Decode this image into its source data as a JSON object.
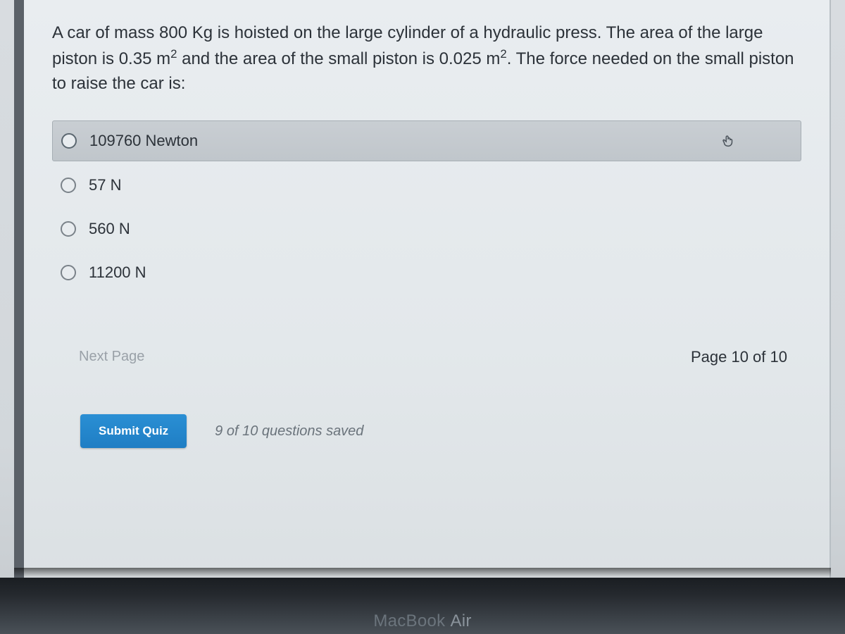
{
  "question": {
    "text_html": "A car of mass 800 Kg is hoisted on the large cylinder of a hydraulic press. The area of the large piston is 0.35 m<sup>2</sup> and the area of the small piston is 0.025 m<sup>2</sup>. The force needed on the small piston to raise the car is:"
  },
  "options": [
    {
      "label": "109760 Newton",
      "highlighted": true,
      "has_cursor": true
    },
    {
      "label": "57 N",
      "highlighted": false,
      "has_cursor": false
    },
    {
      "label": "560 N",
      "highlighted": false,
      "has_cursor": false
    },
    {
      "label": "11200 N",
      "highlighted": false,
      "has_cursor": false
    }
  ],
  "nav": {
    "next_label": "Next Page",
    "page_indicator": "Page 10 of 10"
  },
  "submit": {
    "button_label": "Submit Quiz",
    "status_text": "9 of 10 questions saved"
  },
  "device": {
    "brand": "MacBook",
    "model": "Air"
  },
  "colors": {
    "accent": "#2a8fd4",
    "text": "#2c3239",
    "muted": "#9aa1a8",
    "highlight_bg": "#c6ccd1"
  }
}
